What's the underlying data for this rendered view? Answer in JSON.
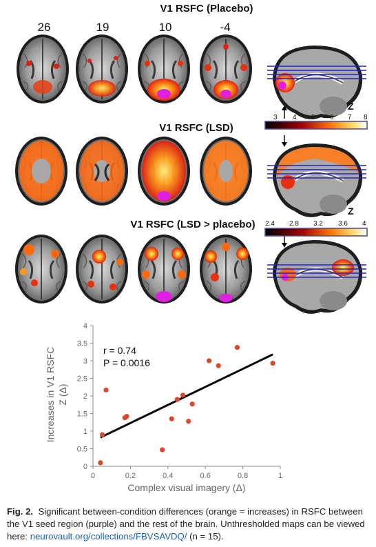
{
  "panel_titles": {
    "placebo": "V1 RSFC (Placebo)",
    "lsd": "V1 RSFC (LSD)",
    "diff": "V1 RSFC (LSD > placebo)"
  },
  "slice_labels": [
    "26",
    "19",
    "10",
    "-4"
  ],
  "colorbars": {
    "top": {
      "ticks": [
        "3",
        "4",
        "5",
        "6",
        "7",
        "8"
      ],
      "z_label": "Z"
    },
    "bottom": {
      "ticks": [
        "2.4",
        "2.8",
        "3.2",
        "3.6",
        "4"
      ],
      "z_label": "Z"
    }
  },
  "colors": {
    "activation": "#ff7a10",
    "seed": "#e020e0",
    "accent": "#d9482b"
  },
  "chart_data": {
    "type": "scatter",
    "xlabel": "Complex visual imagery (Δ)",
    "ylabel": "Increases in V1 RSFC",
    "ylabel2": "Z (Δ)",
    "xlim": [
      0,
      1
    ],
    "ylim": [
      0,
      4
    ],
    "xticks": [
      "0",
      "0.2",
      "0.4",
      "0.6",
      "0.8",
      "1"
    ],
    "yticks": [
      "0",
      "0.5",
      "1",
      "1.5",
      "2",
      "2.5",
      "3",
      "3.5",
      "4"
    ],
    "points": [
      [
        0.04,
        0.1
      ],
      [
        0.05,
        0.9
      ],
      [
        0.07,
        2.17
      ],
      [
        0.17,
        1.38
      ],
      [
        0.18,
        1.42
      ],
      [
        0.37,
        0.47
      ],
      [
        0.42,
        1.35
      ],
      [
        0.45,
        1.9
      ],
      [
        0.48,
        2.02
      ],
      [
        0.51,
        1.28
      ],
      [
        0.53,
        1.77
      ],
      [
        0.62,
        3.0
      ],
      [
        0.67,
        2.86
      ],
      [
        0.77,
        3.38
      ],
      [
        0.96,
        2.93
      ]
    ],
    "fit": {
      "x0": 0.04,
      "y0": 0.82,
      "x1": 0.96,
      "y1": 3.18
    },
    "stats": {
      "r": "r = 0.74",
      "p": "P = 0.0016"
    }
  },
  "caption": {
    "fig": "Fig. 2.",
    "text": "Significant between-condition differences (orange = increases) in RSFC between the V1 seed region (purple) and the rest of the brain. Unthresholded maps can be viewed here: ",
    "link": "neurovault.org/collections/FBVSAVDQ/",
    "n": "(n = 15)."
  }
}
